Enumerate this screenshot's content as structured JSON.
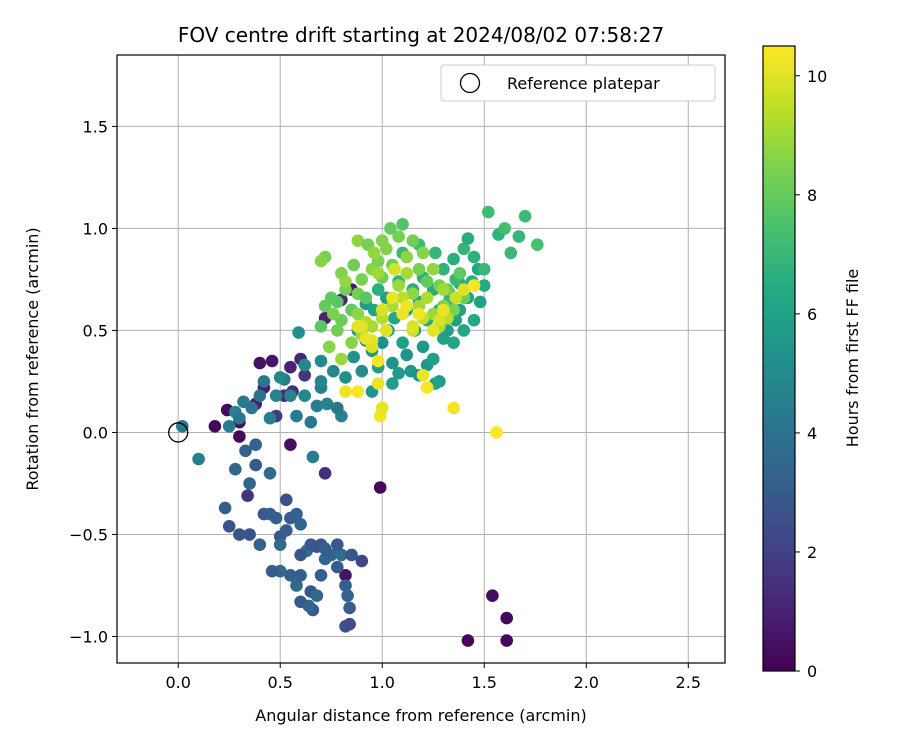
{
  "chart_data": {
    "type": "scatter",
    "title": "FOV centre drift starting at 2024/08/02 07:58:27",
    "xlabel": "Angular distance from reference (arcmin)",
    "ylabel": "Rotation from reference (arcmin)",
    "xlim": [
      -0.3,
      2.68
    ],
    "ylim": [
      -1.13,
      1.85
    ],
    "xticks": [
      0.0,
      0.5,
      1.0,
      1.5,
      2.0,
      2.5
    ],
    "xticklabels": [
      "0.0",
      "0.5",
      "1.0",
      "1.5",
      "2.0",
      "2.5"
    ],
    "yticks": [
      -1.0,
      -0.5,
      0.0,
      0.5,
      1.0,
      1.5
    ],
    "yticklabels": [
      "−1.0",
      "−0.5",
      "0.0",
      "0.5",
      "1.0",
      "1.5"
    ],
    "grid": true,
    "legend": {
      "location": "top-right",
      "entries": [
        {
          "label": "Reference platepar",
          "marker": "open-circle"
        }
      ]
    },
    "reference_point": {
      "x": 0.0,
      "y": 0.0
    },
    "colorbar": {
      "label": "Hours from first FF file",
      "colormap": "viridis",
      "range": [
        0,
        10.5
      ],
      "ticks": [
        0,
        2,
        4,
        6,
        8,
        10
      ],
      "ticklabels": [
        "0",
        "2",
        "4",
        "6",
        "8",
        "10"
      ]
    },
    "points": [
      [
        0.18,
        0.03,
        0.2
      ],
      [
        0.24,
        0.11,
        0.3
      ],
      [
        0.3,
        0.05,
        0.4
      ],
      [
        0.3,
        -0.02,
        0.3
      ],
      [
        0.4,
        0.34,
        0.5
      ],
      [
        0.46,
        0.35,
        0.6
      ],
      [
        0.42,
        0.22,
        0.8
      ],
      [
        0.38,
        0.14,
        0.9
      ],
      [
        0.55,
        0.32,
        1.0
      ],
      [
        0.6,
        0.36,
        1.1
      ],
      [
        0.56,
        0.2,
        1.4
      ],
      [
        0.62,
        0.28,
        1.6
      ],
      [
        0.52,
        0.18,
        1.2
      ],
      [
        0.48,
        0.08,
        1.8
      ],
      [
        0.72,
        0.56,
        1.0
      ],
      [
        0.8,
        0.65,
        1.2
      ],
      [
        0.85,
        0.7,
        0.6
      ],
      [
        0.99,
        -0.27,
        0.2
      ],
      [
        1.42,
        -1.02,
        0.2
      ],
      [
        1.54,
        -0.8,
        0.3
      ],
      [
        1.61,
        -0.91,
        0.2
      ],
      [
        1.61,
        -1.02,
        0.2
      ],
      [
        0.72,
        -0.2,
        1.4
      ],
      [
        0.55,
        -0.06,
        0.4
      ],
      [
        0.82,
        -0.7,
        0.5
      ],
      [
        0.34,
        -0.31,
        1.6
      ],
      [
        0.25,
        -0.46,
        2.6
      ],
      [
        0.3,
        -0.5,
        2.8
      ],
      [
        0.35,
        -0.5,
        2.7
      ],
      [
        0.23,
        -0.37,
        3.1
      ],
      [
        0.28,
        -0.18,
        3.4
      ],
      [
        0.33,
        -0.09,
        3.2
      ],
      [
        0.38,
        -0.16,
        2.9
      ],
      [
        0.42,
        -0.4,
        2.9
      ],
      [
        0.45,
        -0.4,
        3.1
      ],
      [
        0.48,
        -0.42,
        3.2
      ],
      [
        0.5,
        -0.51,
        2.9
      ],
      [
        0.53,
        -0.48,
        3.0
      ],
      [
        0.53,
        -0.33,
        2.6
      ],
      [
        0.55,
        -0.42,
        3.0
      ],
      [
        0.58,
        -0.4,
        3.3
      ],
      [
        0.6,
        -0.45,
        3.4
      ],
      [
        0.63,
        -0.58,
        3.6
      ],
      [
        0.65,
        -0.55,
        3.0
      ],
      [
        0.6,
        -0.6,
        2.8
      ],
      [
        0.6,
        -0.7,
        3.1
      ],
      [
        0.55,
        -0.7,
        3.2
      ],
      [
        0.5,
        -0.68,
        3.5
      ],
      [
        0.46,
        -0.68,
        3.2
      ],
      [
        0.58,
        -0.75,
        3.6
      ],
      [
        0.6,
        -0.83,
        3.0
      ],
      [
        0.65,
        -0.78,
        2.8
      ],
      [
        0.7,
        -0.7,
        3.2
      ],
      [
        0.72,
        -0.62,
        3.4
      ],
      [
        0.7,
        -0.55,
        3.0
      ],
      [
        0.68,
        -0.56,
        2.8
      ],
      [
        0.75,
        -0.6,
        3.3
      ],
      [
        0.78,
        -0.66,
        3.1
      ],
      [
        0.8,
        -0.6,
        3.7
      ],
      [
        0.82,
        -0.75,
        3.2
      ],
      [
        0.83,
        -0.8,
        3.4
      ],
      [
        0.84,
        -0.86,
        3.0
      ],
      [
        0.82,
        -0.95,
        2.6
      ],
      [
        0.84,
        -0.94,
        2.4
      ],
      [
        0.85,
        -0.6,
        2.8
      ],
      [
        0.9,
        -0.63,
        2.2
      ],
      [
        0.78,
        -0.55,
        2.9
      ],
      [
        0.72,
        -0.57,
        3.1
      ],
      [
        0.68,
        -0.8,
        3.5
      ],
      [
        0.66,
        -0.87,
        2.9
      ],
      [
        0.64,
        -0.85,
        3.3
      ],
      [
        0.5,
        -0.55,
        3.6
      ],
      [
        0.4,
        -0.55,
        3.3
      ],
      [
        0.45,
        -0.2,
        3.6
      ],
      [
        0.38,
        -0.06,
        3.4
      ],
      [
        0.35,
        -0.25,
        3.5
      ],
      [
        0.1,
        -0.13,
        4.5
      ],
      [
        0.02,
        0.03,
        4.2
      ],
      [
        0.25,
        0.03,
        4.4
      ],
      [
        0.28,
        0.1,
        4.6
      ],
      [
        0.32,
        0.15,
        4.3
      ],
      [
        0.36,
        0.12,
        4.1
      ],
      [
        0.4,
        0.18,
        4.0
      ],
      [
        0.42,
        0.25,
        4.2
      ],
      [
        0.45,
        0.07,
        4.4
      ],
      [
        0.48,
        0.18,
        4.6
      ],
      [
        0.52,
        0.26,
        4.3
      ],
      [
        0.55,
        0.18,
        4.7
      ],
      [
        0.58,
        0.08,
        4.5
      ],
      [
        0.62,
        0.18,
        4.8
      ],
      [
        0.65,
        0.05,
        4.2
      ],
      [
        0.68,
        0.13,
        4.4
      ],
      [
        0.7,
        0.22,
        4.5
      ],
      [
        0.73,
        0.14,
        4.6
      ],
      [
        0.76,
        0.3,
        4.8
      ],
      [
        0.8,
        0.08,
        4.6
      ],
      [
        0.78,
        0.12,
        4.2
      ],
      [
        0.66,
        -0.12,
        4.4
      ],
      [
        0.62,
        0.33,
        4.9
      ],
      [
        0.7,
        0.35,
        5.0
      ],
      [
        0.59,
        0.49,
        5.2
      ],
      [
        0.5,
        0.27,
        4.9
      ],
      [
        0.3,
        0.07,
        4.1
      ],
      [
        0.82,
        0.27,
        5.2
      ],
      [
        0.86,
        0.37,
        5.4
      ],
      [
        0.9,
        0.3,
        5.1
      ],
      [
        0.92,
        0.45,
        5.3
      ],
      [
        0.88,
        0.5,
        5.6
      ],
      [
        0.95,
        0.4,
        5.5
      ],
      [
        0.98,
        0.32,
        5.8
      ],
      [
        1.0,
        0.44,
        5.2
      ],
      [
        1.03,
        0.5,
        5.6
      ],
      [
        1.05,
        0.34,
        5.4
      ],
      [
        1.08,
        0.29,
        5.7
      ],
      [
        1.1,
        0.44,
        5.9
      ],
      [
        1.12,
        0.38,
        5.3
      ],
      [
        1.14,
        0.3,
        5.5
      ],
      [
        1.16,
        0.5,
        5.8
      ],
      [
        1.18,
        0.28,
        5.2
      ],
      [
        1.2,
        0.42,
        5.6
      ],
      [
        1.22,
        0.33,
        5.4
      ],
      [
        1.25,
        0.36,
        5.9
      ],
      [
        1.28,
        0.25,
        5.7
      ],
      [
        1.3,
        0.46,
        6.0
      ],
      [
        1.32,
        0.5,
        5.8
      ],
      [
        1.35,
        0.44,
        6.1
      ],
      [
        1.36,
        0.55,
        5.9
      ],
      [
        1.38,
        0.6,
        6.0
      ],
      [
        1.4,
        0.5,
        6.2
      ],
      [
        1.42,
        0.66,
        6.1
      ],
      [
        1.45,
        0.55,
        6.3
      ],
      [
        1.48,
        0.64,
        6.0
      ],
      [
        1.5,
        0.72,
        6.4
      ],
      [
        1.47,
        0.8,
        6.2
      ],
      [
        1.44,
        0.74,
        6.5
      ],
      [
        1.38,
        0.73,
        6.3
      ],
      [
        1.33,
        0.68,
        6.6
      ],
      [
        1.28,
        0.6,
        6.2
      ],
      [
        1.22,
        0.55,
        6.4
      ],
      [
        1.18,
        0.64,
        6.1
      ],
      [
        1.12,
        0.6,
        6.0
      ],
      [
        1.06,
        0.56,
        6.3
      ],
      [
        1.02,
        0.66,
        5.9
      ],
      [
        0.96,
        0.6,
        6.1
      ],
      [
        0.92,
        0.63,
        5.8
      ],
      [
        0.85,
        0.6,
        5.6
      ],
      [
        1.15,
        0.7,
        6.5
      ],
      [
        1.2,
        0.76,
        6.7
      ],
      [
        1.25,
        0.7,
        6.4
      ],
      [
        1.3,
        0.8,
        6.8
      ],
      [
        1.35,
        0.85,
        6.6
      ],
      [
        1.4,
        0.9,
        6.9
      ],
      [
        1.45,
        0.86,
        6.7
      ],
      [
        1.5,
        0.8,
        7.0
      ],
      [
        1.42,
        0.95,
        6.5
      ],
      [
        1.52,
        1.08,
        7.2
      ],
      [
        1.57,
        0.97,
        6.8
      ],
      [
        1.63,
        0.88,
        7.0
      ],
      [
        1.67,
        0.96,
        6.9
      ],
      [
        1.7,
        1.06,
        7.1
      ],
      [
        1.76,
        0.92,
        7.4
      ],
      [
        1.6,
        1.0,
        7.3
      ],
      [
        1.33,
        0.65,
        6.9
      ],
      [
        1.36,
        0.75,
        7.0
      ],
      [
        1.26,
        0.24,
        6.0
      ],
      [
        0.95,
        0.2,
        5.5
      ],
      [
        1.05,
        0.24,
        5.8
      ],
      [
        0.7,
        0.25,
        4.8
      ],
      [
        1.1,
        0.88,
        7.0
      ],
      [
        1.18,
        0.92,
        7.2
      ],
      [
        1.26,
        0.88,
        6.9
      ],
      [
        0.98,
        0.7,
        6.6
      ],
      [
        1.08,
        0.74,
        6.8
      ],
      [
        0.7,
        0.52,
        7.8
      ],
      [
        0.72,
        0.62,
        8.0
      ],
      [
        0.75,
        0.66,
        7.9
      ],
      [
        0.8,
        0.55,
        8.1
      ],
      [
        0.82,
        0.7,
        8.3
      ],
      [
        0.85,
        0.6,
        8.0
      ],
      [
        0.88,
        0.68,
        8.2
      ],
      [
        0.9,
        0.75,
        8.4
      ],
      [
        0.92,
        0.66,
        7.8
      ],
      [
        0.95,
        0.8,
        8.6
      ],
      [
        0.98,
        0.84,
        8.4
      ],
      [
        1.0,
        0.76,
        8.2
      ],
      [
        1.02,
        0.9,
        8.5
      ],
      [
        1.05,
        0.82,
        8.1
      ],
      [
        1.08,
        0.96,
        8.3
      ],
      [
        1.1,
        1.02,
        7.6
      ],
      [
        1.12,
        0.86,
        8.7
      ],
      [
        1.15,
        0.94,
        8.2
      ],
      [
        1.18,
        0.8,
        8.4
      ],
      [
        1.2,
        0.88,
        8.6
      ],
      [
        1.22,
        0.74,
        8.0
      ],
      [
        1.25,
        0.8,
        8.8
      ],
      [
        1.28,
        0.72,
        8.3
      ],
      [
        1.3,
        0.62,
        8.5
      ],
      [
        1.32,
        0.7,
        8.1
      ],
      [
        1.35,
        0.6,
        8.4
      ],
      [
        1.38,
        0.78,
        7.9
      ],
      [
        1.4,
        0.66,
        8.2
      ],
      [
        1.45,
        0.72,
        8.5
      ],
      [
        0.72,
        0.86,
        8.3
      ],
      [
        0.7,
        0.84,
        8.6
      ],
      [
        0.78,
        0.64,
        7.8
      ],
      [
        0.8,
        0.78,
        8.5
      ],
      [
        0.86,
        0.82,
        8.2
      ],
      [
        0.88,
        0.94,
        8.7
      ],
      [
        0.93,
        0.92,
        8.3
      ],
      [
        0.96,
        0.88,
        8.8
      ],
      [
        1.0,
        0.94,
        8.5
      ],
      [
        1.04,
        1.0,
        8.0
      ],
      [
        1.08,
        0.72,
        8.9
      ],
      [
        1.12,
        0.78,
        9.1
      ],
      [
        1.15,
        0.68,
        8.7
      ],
      [
        1.18,
        0.62,
        9.0
      ],
      [
        1.22,
        0.66,
        9.2
      ],
      [
        1.25,
        0.58,
        8.9
      ],
      [
        1.28,
        0.52,
        9.3
      ],
      [
        1.3,
        0.7,
        9.0
      ],
      [
        0.85,
        0.44,
        8.6
      ],
      [
        0.9,
        0.48,
        8.9
      ],
      [
        0.95,
        0.52,
        9.1
      ],
      [
        1.0,
        0.56,
        9.3
      ],
      [
        0.82,
        0.74,
        8.8
      ],
      [
        0.76,
        0.58,
        8.4
      ],
      [
        0.78,
        0.5,
        8.2
      ],
      [
        0.74,
        0.42,
        8.6
      ],
      [
        0.8,
        0.36,
        8.9
      ],
      [
        0.88,
        0.58,
        8.7
      ],
      [
        0.92,
        0.54,
        9.2
      ],
      [
        1.1,
        0.66,
        9.4
      ],
      [
        1.2,
        0.56,
        9.5
      ],
      [
        0.98,
        0.78,
        9.0
      ],
      [
        1.05,
        0.62,
        9.2
      ],
      [
        1.15,
        0.5,
        9.6
      ],
      [
        1.32,
        0.56,
        9.4
      ],
      [
        1.36,
        0.66,
        9.7
      ],
      [
        0.82,
        0.2,
        10.2
      ],
      [
        0.88,
        0.2,
        10.4
      ],
      [
        0.9,
        0.52,
        10.0
      ],
      [
        0.95,
        0.45,
        10.1
      ],
      [
        0.98,
        0.35,
        10.3
      ],
      [
        1.0,
        0.6,
        9.9
      ],
      [
        1.05,
        0.66,
        10.1
      ],
      [
        1.1,
        0.58,
        10.2
      ],
      [
        1.15,
        0.52,
        10.0
      ],
      [
        1.18,
        0.58,
        10.3
      ],
      [
        1.2,
        0.28,
        10.2
      ],
      [
        1.22,
        0.22,
        10.4
      ],
      [
        1.25,
        0.5,
        10.1
      ],
      [
        1.28,
        0.55,
        9.9
      ],
      [
        1.3,
        0.6,
        10.2
      ],
      [
        1.35,
        0.12,
        10.3
      ],
      [
        1.4,
        0.7,
        10.0
      ],
      [
        1.45,
        0.72,
        10.4
      ],
      [
        1.56,
        0.0,
        10.5
      ],
      [
        0.98,
        0.24,
        10.2
      ],
      [
        0.99,
        0.08,
        10.3
      ],
      [
        1.0,
        0.12,
        10.1
      ],
      [
        0.95,
        0.42,
        10.0
      ],
      [
        0.92,
        0.46,
        10.2
      ],
      [
        0.88,
        0.52,
        10.1
      ],
      [
        1.02,
        0.5,
        10.0
      ],
      [
        1.06,
        0.8,
        9.8
      ],
      [
        1.12,
        0.62,
        10.2
      ]
    ]
  }
}
